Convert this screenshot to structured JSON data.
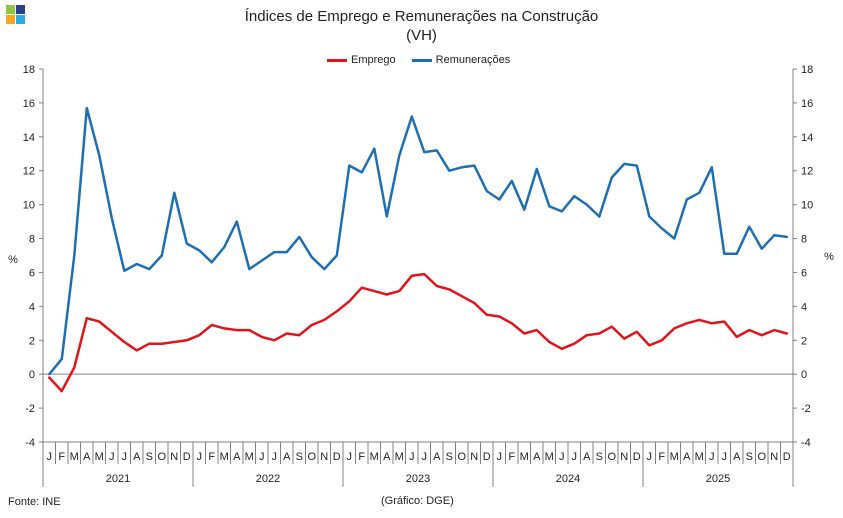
{
  "colors": {
    "emprego": "#e0151b",
    "remuneracoes": "#1f6fb0",
    "axis": "#808080"
  },
  "chart_data": {
    "type": "line",
    "title": "Índices de Emprego e Remunerações na Construção",
    "subtitle": "(VH)",
    "ylabel_left": "%",
    "ylabel_right": "%",
    "ylim": [
      -4,
      18
    ],
    "yticks": [
      -4,
      -2,
      0,
      2,
      4,
      6,
      8,
      10,
      12,
      14,
      16,
      18
    ],
    "month_labels": [
      "J",
      "F",
      "M",
      "A",
      "M",
      "J",
      "J",
      "A",
      "S",
      "O",
      "N",
      "D"
    ],
    "years": [
      "2021",
      "2022",
      "2023",
      "2024",
      "2025"
    ],
    "legend_position": "top-center",
    "series": [
      {
        "name": "Emprego",
        "color": "#e0151b",
        "values": [
          -0.2,
          -1.0,
          0.4,
          3.3,
          3.1,
          2.5,
          1.9,
          1.4,
          1.8,
          1.8,
          1.9,
          2.0,
          2.3,
          2.9,
          2.7,
          2.6,
          2.6,
          2.2,
          2.0,
          2.4,
          2.3,
          2.9,
          3.2,
          3.7,
          4.3,
          5.1,
          4.9,
          4.7,
          4.9,
          5.8,
          5.9,
          5.2,
          5.0,
          4.6,
          4.2,
          3.5,
          3.4,
          3.0,
          2.4,
          2.6,
          1.9,
          1.5,
          1.8,
          2.3,
          2.4,
          2.8,
          2.1,
          2.5,
          1.7,
          2.0,
          2.7,
          3.0,
          3.2,
          3.0,
          3.1,
          2.2,
          2.6,
          2.3,
          2.6,
          2.4
        ]
      },
      {
        "name": "Remunerações",
        "color": "#1f6fb0",
        "values": [
          0.0,
          0.9,
          7.0,
          15.7,
          12.9,
          9.2,
          6.1,
          6.5,
          6.2,
          7.0,
          10.7,
          7.7,
          7.3,
          6.6,
          7.5,
          9.0,
          6.2,
          6.7,
          7.2,
          7.2,
          8.1,
          6.9,
          6.2,
          7.0,
          12.3,
          11.9,
          13.3,
          9.3,
          12.9,
          15.2,
          13.1,
          13.2,
          12.0,
          12.2,
          12.3,
          10.8,
          10.3,
          11.4,
          9.7,
          12.1,
          9.9,
          9.6,
          10.5,
          10.0,
          9.3,
          11.6,
          12.4,
          12.3,
          9.3,
          8.6,
          8.0,
          10.3,
          10.7,
          12.2,
          7.1,
          7.1,
          8.7,
          7.4,
          8.2,
          8.1
        ]
      }
    ]
  },
  "footer": {
    "source": "Fonte: INE",
    "credit": "(Gráfico: DGE)"
  }
}
